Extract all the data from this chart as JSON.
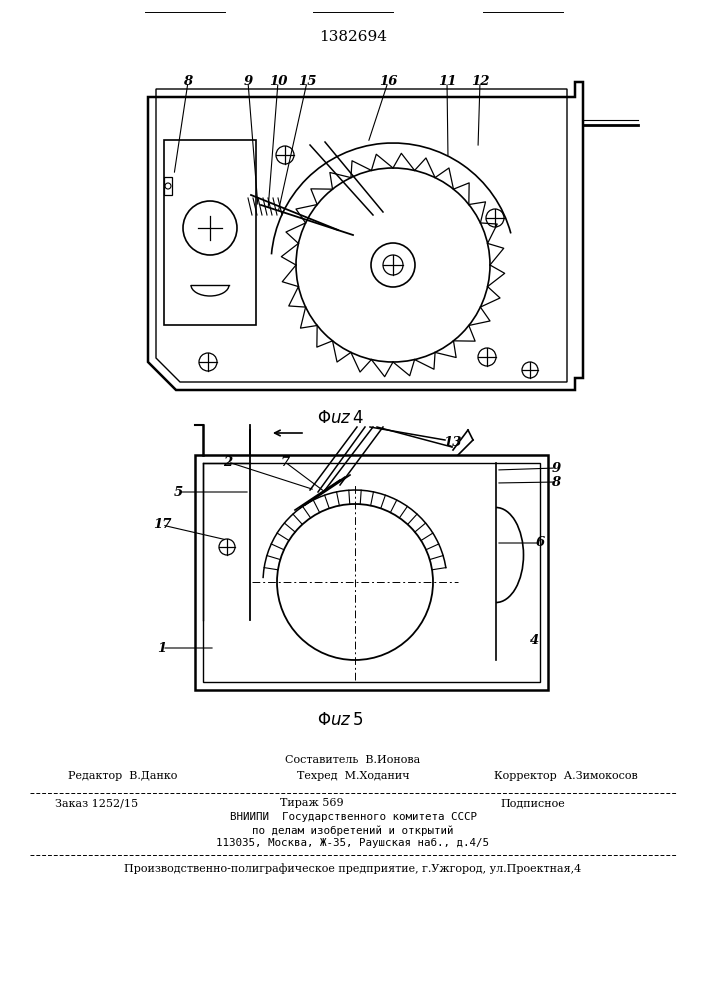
{
  "patent_number": "1382694",
  "bg_color": "#ffffff",
  "line_color": "#000000",
  "footer_sostavitel": "Составитель  В.Ионова",
  "footer_redaktor": "Редактор  В.Данко",
  "footer_tehred": "Техред  М.Ходанич",
  "footer_korrektor": "Корректор  А.Зимокосов",
  "footer_zakaz": "Заказ 1252/15",
  "footer_tirazh": "Тираж 569",
  "footer_podpisnoe": "Подписное",
  "footer_vnipi": "ВНИИПИ  Государственного комитета СССР",
  "footer_po_delam": "по делам изобретений и открытий",
  "footer_address": "113035, Москва, Ж-35, Раушская наб., д.4/5",
  "footer_production": "Производственно-полиграфическое предприятие, г.Ужгород, ул.Проектная,4"
}
